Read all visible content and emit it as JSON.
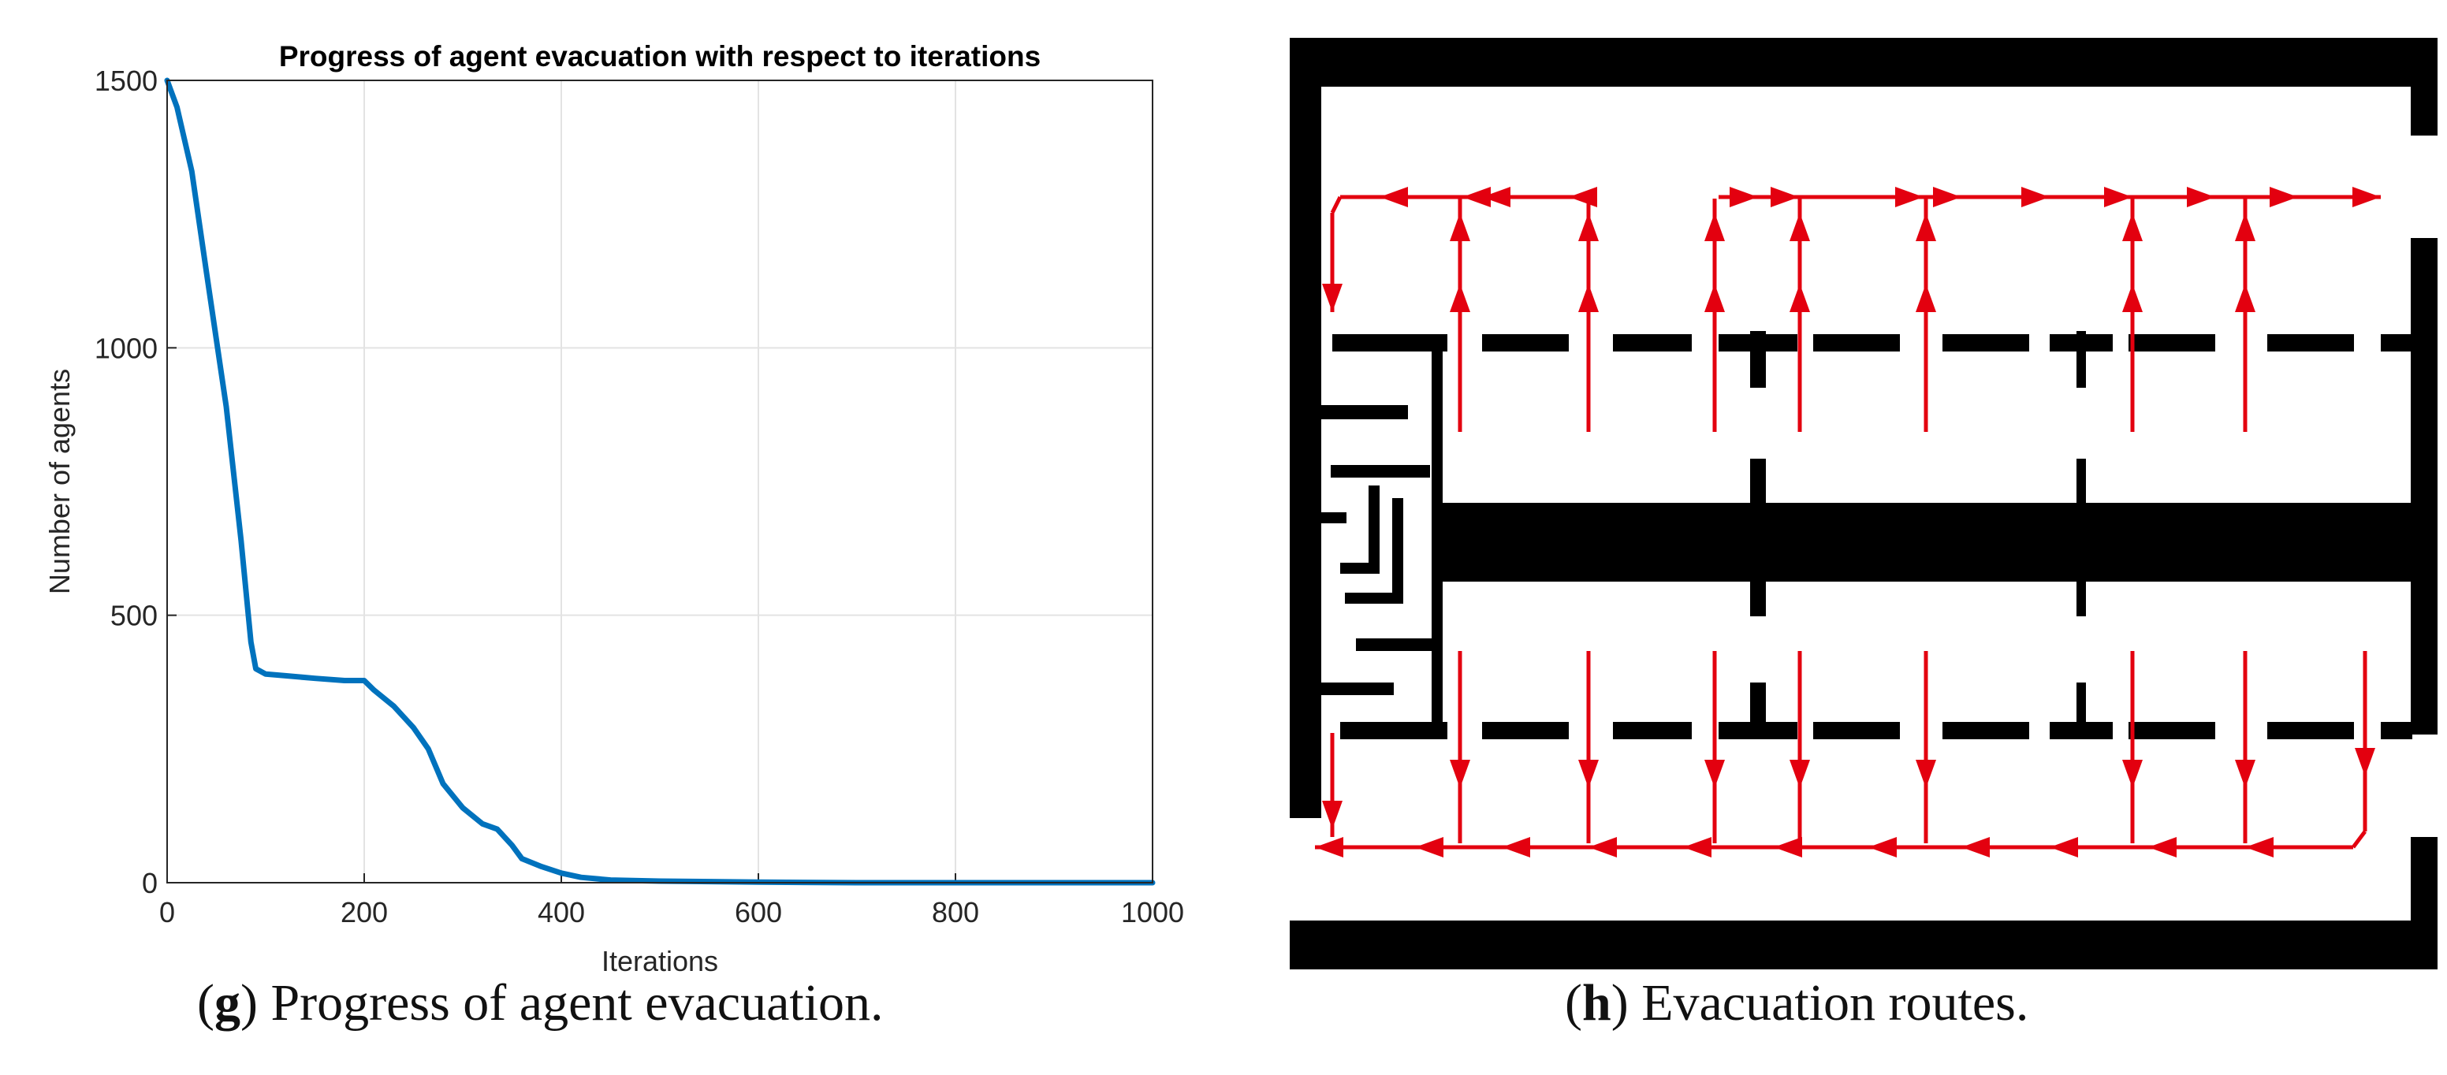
{
  "figure_g": {
    "caption_letter": "g",
    "caption_text": "Progress of agent evacuation."
  },
  "figure_h": {
    "caption_letter": "h",
    "caption_text": "Evacuation routes."
  },
  "colors": {
    "line": "#0072BD",
    "grid": "#e3e3e3",
    "route": "#e3000f",
    "wall": "#000000"
  },
  "chart_data": {
    "type": "line",
    "title": "Progress of agent evacuation with respect to iterations",
    "xlabel": "Iterations",
    "ylabel": "Number of agents",
    "xlim": [
      0,
      1000
    ],
    "ylim": [
      0,
      1500
    ],
    "xticks": [
      "0",
      "200",
      "400",
      "600",
      "800",
      "1000"
    ],
    "yticks": [
      "0",
      "500",
      "1000",
      "1500"
    ],
    "grid": true,
    "series": [
      {
        "x": [
          0,
          10,
          25,
          40,
          60,
          75,
          85,
          90,
          100,
          120,
          150,
          180,
          200,
          210,
          230,
          250,
          265,
          280,
          300,
          320,
          335,
          350,
          360,
          380,
          400,
          420,
          450,
          500,
          600,
          700,
          1000
        ],
        "y": [
          1500,
          1450,
          1330,
          1140,
          890,
          640,
          450,
          400,
          390,
          387,
          382,
          378,
          378,
          360,
          330,
          290,
          250,
          185,
          140,
          110,
          100,
          70,
          45,
          30,
          18,
          10,
          5,
          3,
          1,
          0,
          0
        ]
      }
    ]
  }
}
